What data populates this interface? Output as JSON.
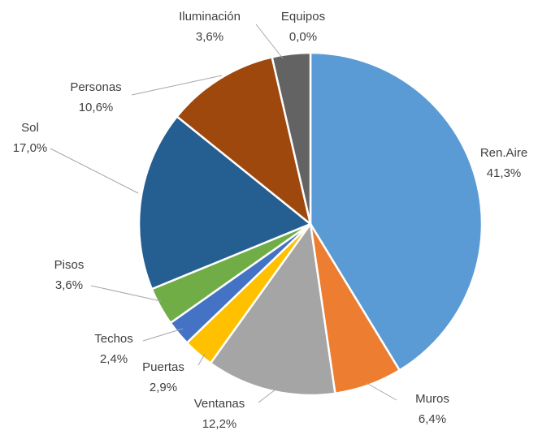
{
  "chart_data": {
    "type": "pie",
    "title": "",
    "start": "12 o'clock",
    "direction": "clockwise",
    "legend": "none",
    "slices": [
      {
        "name": "Ren.Aire",
        "value": 41.3,
        "label": "41,3%",
        "color": "#5b9bd5"
      },
      {
        "name": "Muros",
        "value": 6.4,
        "label": "6,4%",
        "color": "#ed7d31"
      },
      {
        "name": "Ventanas",
        "value": 12.2,
        "label": "12,2%",
        "color": "#a5a5a5"
      },
      {
        "name": "Puertas",
        "value": 2.9,
        "label": "2,9%",
        "color": "#ffc000"
      },
      {
        "name": "Techos",
        "value": 2.4,
        "label": "2,4%",
        "color": "#4472c4"
      },
      {
        "name": "Pisos",
        "value": 3.6,
        "label": "3,6%",
        "color": "#70ad47"
      },
      {
        "name": "Sol",
        "value": 17.0,
        "label": "17,0%",
        "color": "#255e91"
      },
      {
        "name": "Personas",
        "value": 10.6,
        "label": "10,6%",
        "color": "#9e480e"
      },
      {
        "name": "Iluminación",
        "value": 3.6,
        "label": "3,6%",
        "color": "#636363"
      },
      {
        "name": "Equipos",
        "value": 0.0,
        "label": "0,0%",
        "color": "#997300"
      }
    ]
  }
}
